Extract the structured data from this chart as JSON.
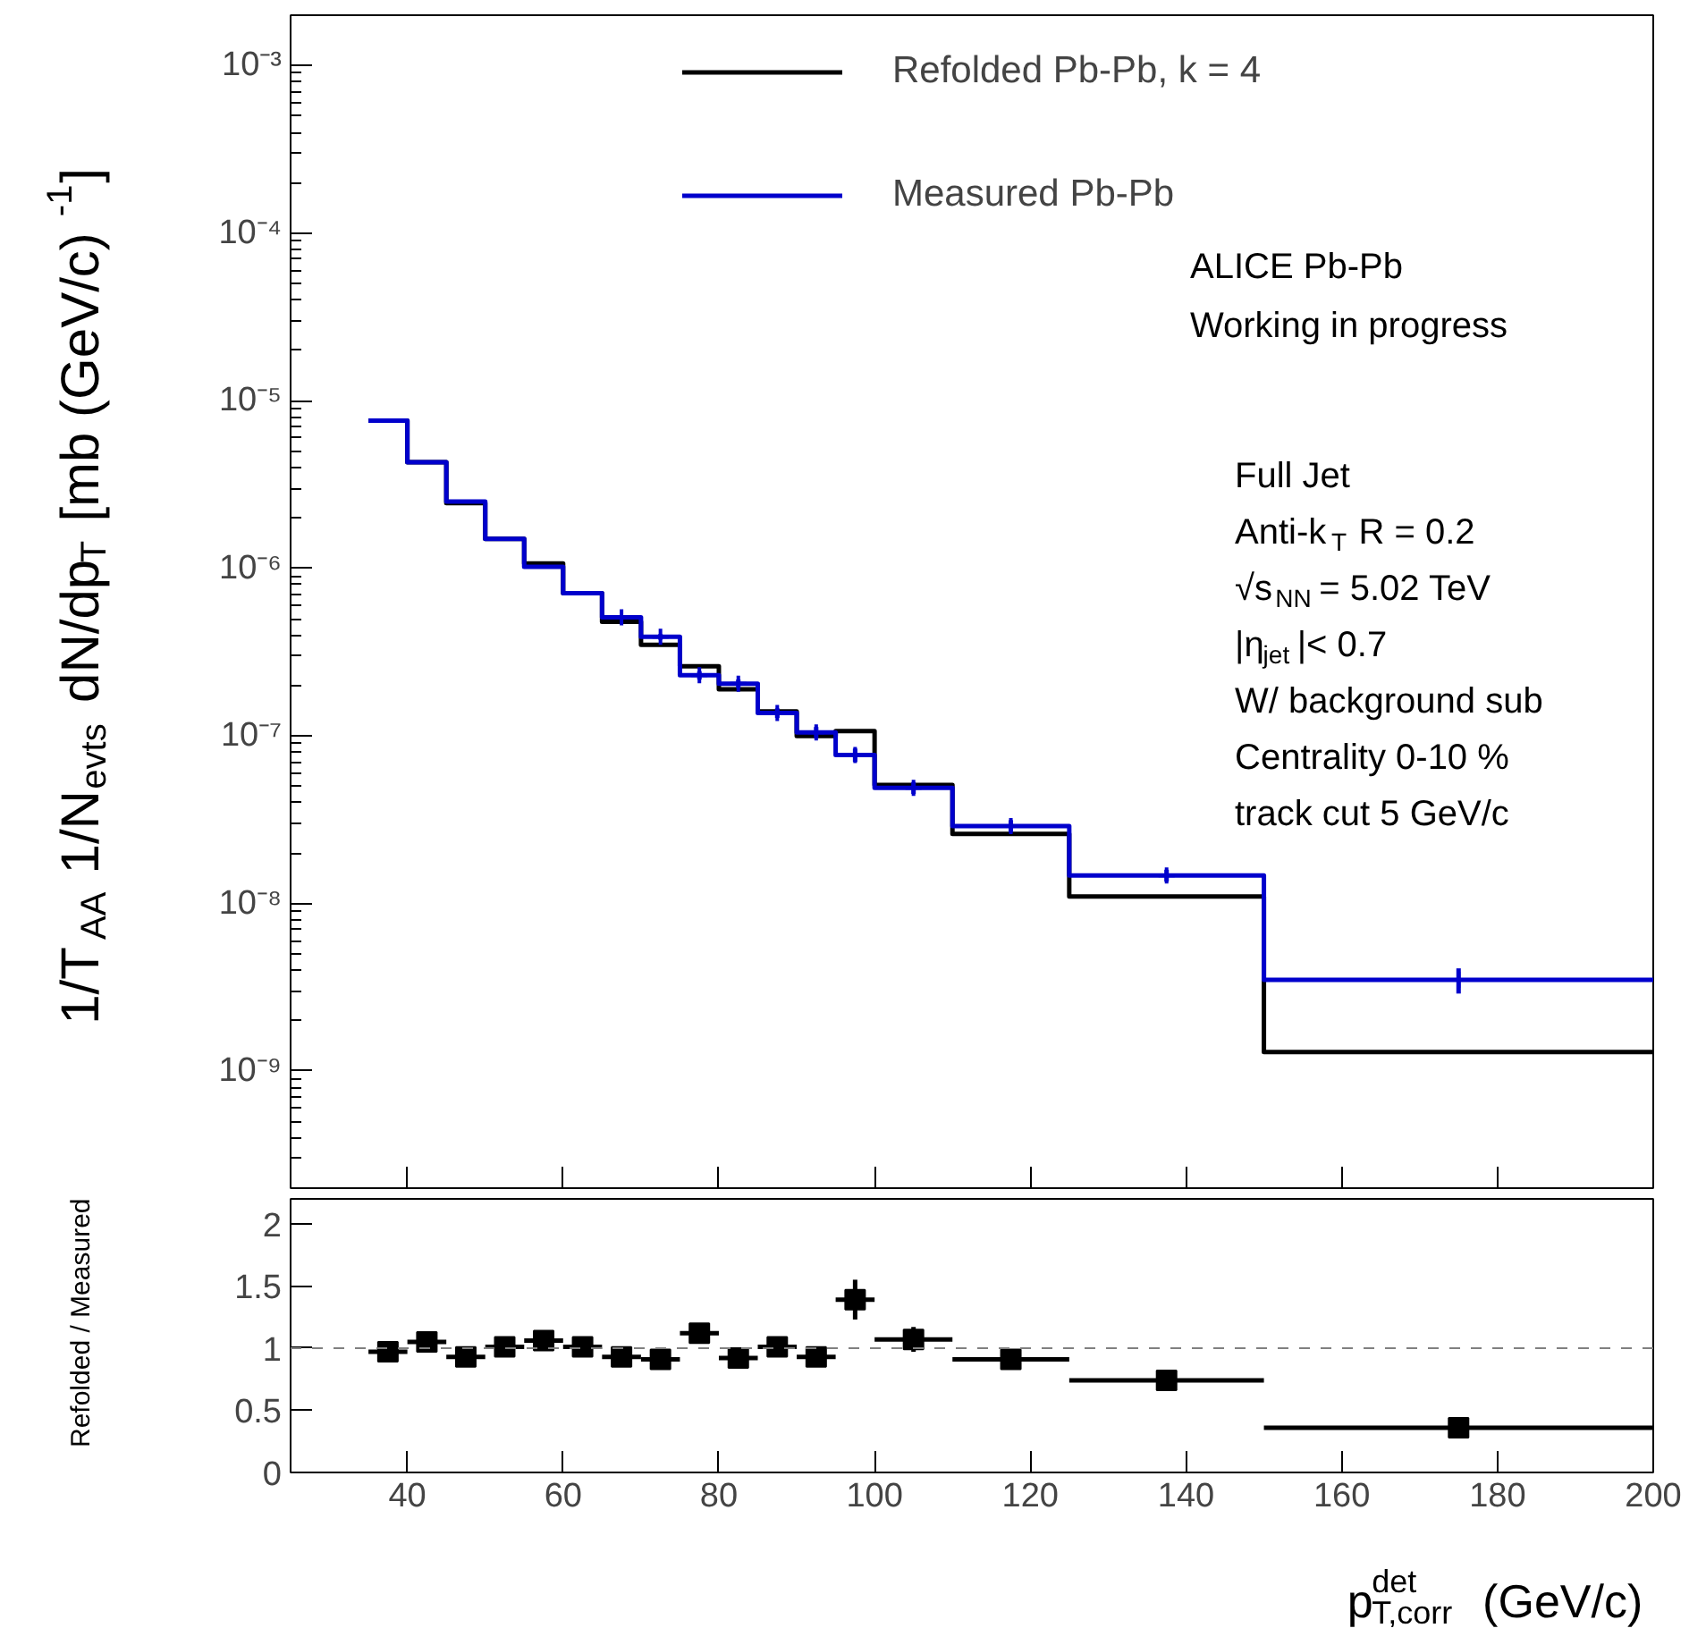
{
  "chart_data": [
    {
      "type": "histogram",
      "bins": [
        35,
        40,
        45,
        50,
        55,
        60,
        65,
        70,
        75,
        80,
        85,
        90,
        95,
        100,
        110,
        125,
        150,
        200
      ],
      "series": [
        {
          "name": "Refolded Pb-Pb, k = 4",
          "color": "#000000",
          "values": [
            7.6e-06,
            4.3e-06,
            2.45e-06,
            1.5e-06,
            1.07e-06,
            7.1e-07,
            4.8e-07,
            3.5e-07,
            2.6e-07,
            1.9e-07,
            1.4e-07,
            1e-07,
            1.07e-07,
            5.1e-08,
            2.6e-08,
            1.1e-08,
            1.3e-09
          ]
        },
        {
          "name": "Measured Pb-Pb",
          "color": "#0000cc",
          "values": [
            7.6e-06,
            4.3e-06,
            2.5e-06,
            1.5e-06,
            1.02e-06,
            7.1e-07,
            5.1e-07,
            3.9e-07,
            2.3e-07,
            2.05e-07,
            1.37e-07,
            1.05e-07,
            7.7e-08,
            4.9e-08,
            2.9e-08,
            1.47e-08,
            3.5e-09
          ]
        },
        {
          "type": "scatter",
          "marker": "cross",
          "color": "#0000cc",
          "x": [
            67.5,
            72.5,
            77.5,
            82.5,
            87.5,
            92.5,
            97.5,
            105,
            117.5,
            137.5,
            175
          ],
          "values": [
            5.1e-07,
            3.9e-07,
            2.3e-07,
            2.05e-07,
            1.37e-07,
            1.05e-07,
            7.7e-08,
            4.9e-08,
            2.9e-08,
            1.47e-08,
            3.5e-09
          ],
          "errors": [
            1.5e-08,
            1.5e-08,
            1.3e-08,
            1.2e-08,
            9e-09,
            8e-09,
            7e-09,
            4e-09,
            2.4e-09,
            1.2e-09,
            6e-10
          ]
        }
      ],
      "ylabel": "1/T$_{AA}$ 1/N$_{evts}$ dN/dp$_{T}$ [mb (GeV/c)$^{-1}$]",
      "log": "y",
      "xlim": [
        25,
        200
      ],
      "ylim": [
        2e-10,
        0.002
      ],
      "xticks": [
        40,
        60,
        80,
        100,
        120,
        140,
        160,
        180,
        200
      ],
      "yticks": [
        {
          "value": 1e-09,
          "label": "10⁻⁹"
        },
        {
          "value": 1e-08,
          "label": "10⁻⁸"
        },
        {
          "value": 1e-07,
          "label": "10⁻⁷"
        },
        {
          "value": 1e-06,
          "label": "10⁻⁶"
        },
        {
          "value": 1e-05,
          "label": "10⁻⁵"
        },
        {
          "value": 0.0001,
          "label": "10⁻⁴"
        },
        {
          "value": 0.001,
          "label": "10⁻³"
        }
      ],
      "tick_labels": "y",
      "legend": "top",
      "annotations": [
        "ALICE Pb-Pb",
        "Working in progress",
        "Full Jet",
        "Anti-k$_{T}$ R = 0.2",
        "√s$_{NN}$ = 5.02 TeV",
        "|η$_{jet}$|< 0.7",
        "W/ background sub",
        "Centrality 0-10 %",
        "track cut 5 GeV/c"
      ]
    },
    {
      "type": "scatter",
      "x": [
        37.5,
        42.5,
        47.5,
        52.5,
        57.5,
        62.5,
        67.5,
        72.5,
        77.5,
        82.5,
        87.5,
        92.5,
        97.5,
        105,
        117.5,
        137.5,
        175
      ],
      "series": [
        {
          "color": "#000000",
          "values": [
            0.97,
            1.05,
            0.93,
            1.01,
            1.06,
            1.01,
            0.93,
            0.91,
            1.12,
            0.92,
            1.01,
            0.93,
            1.39,
            1.07,
            0.91,
            0.74,
            0.36
          ],
          "errors": [
            0.04,
            0.04,
            0.04,
            0.04,
            0.04,
            0.04,
            0.04,
            0.04,
            0.05,
            0.04,
            0.06,
            0.07,
            0.16,
            0.1,
            0.08,
            0.08,
            0.03
          ],
          "xerrors": [
            2.5,
            2.5,
            2.5,
            2.5,
            2.5,
            2.5,
            2.5,
            2.5,
            2.5,
            2.5,
            2.5,
            2.5,
            2.5,
            5,
            7.5,
            12.5,
            25
          ]
        }
      ],
      "xlabel": "p$^{det}$$_{T,corr}$ (GeV/c)",
      "ylabel": "Refolded / Measured",
      "xlim": [
        25,
        200
      ],
      "ylim": [
        0,
        2.2
      ],
      "xticks": [
        40,
        60,
        80,
        100,
        120,
        140,
        160,
        180,
        200
      ],
      "yticks": [
        0,
        0.5,
        1,
        1.5,
        2
      ],
      "marker": "square",
      "ref_lines": [
        {
          "axis": "y",
          "value": 1,
          "color": "#808080",
          "line_style": "dashed"
        }
      ]
    }
  ]
}
